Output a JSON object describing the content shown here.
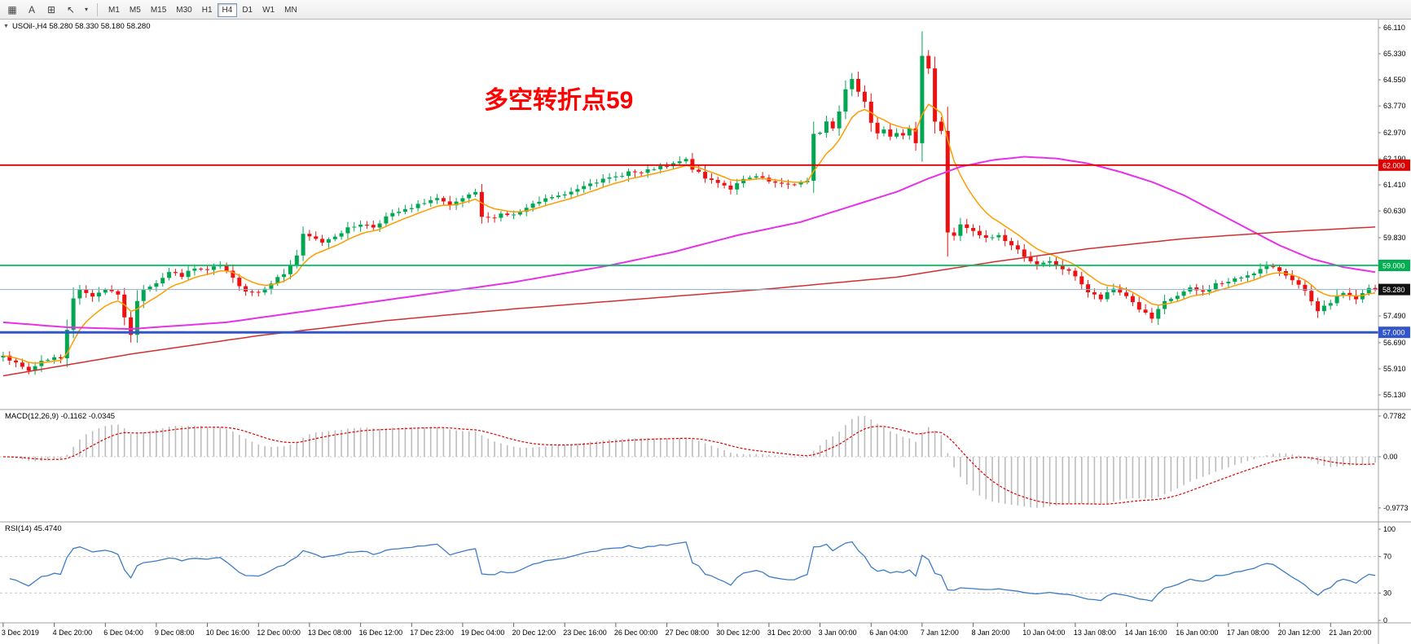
{
  "toolbar": {
    "timeframes": [
      "M1",
      "M5",
      "M15",
      "M30",
      "H1",
      "H4",
      "D1",
      "W1",
      "MN"
    ],
    "active_timeframe": "H4",
    "icon_glyphs": {
      "tick_chart": "▦",
      "text_tool": "A",
      "indicators": "⊞",
      "cursor": "↖",
      "dropdown": "▾"
    }
  },
  "main_chart": {
    "collapse_glyph": "▼",
    "symbol_label": "USOil-,H4 58.280 58.330 58.180 58.280",
    "annotation_text": "多空转折点59",
    "annotation_color": "#ff0000"
  },
  "indicators": {
    "macd_label": "MACD(12,26,9) -0.1162 -0.0345",
    "rsi_label": "RSI(14) 45.4740"
  },
  "chart_data": {
    "type": "candlestick",
    "symbol": "USOil-",
    "timeframe": "H4",
    "bars_total": 216,
    "label_every_bars": 8,
    "price_axis": {
      "min": 55.13,
      "max": 66.11,
      "tick_labels": [
        "66.110",
        "65.330",
        "64.550",
        "63.770",
        "62.970",
        "62.190",
        "61.410",
        "60.630",
        "59.830",
        "57.490",
        "56.690",
        "55.910",
        "55.130"
      ],
      "tick_values": [
        66.11,
        65.33,
        64.55,
        63.77,
        62.97,
        62.19,
        61.41,
        60.63,
        59.83,
        57.49,
        56.69,
        55.91,
        55.13
      ]
    },
    "badges": [
      {
        "label": "62.000",
        "value": 62.0,
        "color": "#dd0000",
        "text": "#ffffff"
      },
      {
        "label": "59.000",
        "value": 59.0,
        "color": "#00b050",
        "text": "#ffffff"
      },
      {
        "label": "58.280",
        "value": 58.28,
        "color": "#111111",
        "text": "#ffffff"
      },
      {
        "label": "57.000",
        "value": 57.0,
        "color": "#3355cc",
        "text": "#ffffff"
      }
    ],
    "hlines": [
      {
        "value": 62.0,
        "color": "#dd0000",
        "width": 1.8
      },
      {
        "value": 59.0,
        "color": "#00c060",
        "width": 1.8
      },
      {
        "value": 58.28,
        "color": "#8fb0cf",
        "width": 1
      },
      {
        "value": 57.0,
        "color": "#3355cc",
        "width": 3
      }
    ],
    "time_labels": [
      "3 Dec 2019",
      "4 Dec 20:00",
      "6 Dec 04:00",
      "9 Dec 08:00",
      "10 Dec 16:00",
      "12 Dec 00:00",
      "13 Dec 08:00",
      "16 Dec 12:00",
      "17 Dec 23:00",
      "19 Dec 04:00",
      "20 Dec 12:00",
      "23 Dec 16:00",
      "26 Dec 00:00",
      "27 Dec 08:00",
      "30 Dec 12:00",
      "31 Dec 20:00",
      "3 Jan 00:00",
      "6 Jan 04:00",
      "7 Jan 12:00",
      "8 Jan 20:00",
      "10 Jan 04:00",
      "13 Jan 08:00",
      "14 Jan 16:00",
      "16 Jan 00:00",
      "17 Jan 08:00",
      "20 Jan 12:00",
      "21 Jan 20:00"
    ],
    "candle_colors": {
      "up": "#00a651",
      "down": "#ee1111"
    },
    "close_anchors": [
      [
        0,
        56.35
      ],
      [
        2,
        56.05
      ],
      [
        4,
        55.85
      ],
      [
        6,
        56.15
      ],
      [
        8,
        56.25
      ],
      [
        9,
        56.2
      ],
      [
        10,
        57.1
      ],
      [
        11,
        58.05
      ],
      [
        12,
        58.25
      ],
      [
        14,
        58.1
      ],
      [
        16,
        58.3
      ],
      [
        18,
        58.15
      ],
      [
        19,
        57.4
      ],
      [
        20,
        56.95
      ],
      [
        21,
        57.9
      ],
      [
        22,
        58.3
      ],
      [
        24,
        58.5
      ],
      [
        26,
        58.8
      ],
      [
        28,
        58.7
      ],
      [
        30,
        58.9
      ],
      [
        32,
        58.85
      ],
      [
        34,
        59.0
      ],
      [
        36,
        58.6
      ],
      [
        38,
        58.25
      ],
      [
        40,
        58.2
      ],
      [
        42,
        58.5
      ],
      [
        44,
        58.75
      ],
      [
        46,
        59.3
      ],
      [
        47,
        59.9
      ],
      [
        48,
        59.85
      ],
      [
        50,
        59.7
      ],
      [
        52,
        59.9
      ],
      [
        54,
        60.1
      ],
      [
        56,
        60.25
      ],
      [
        58,
        60.15
      ],
      [
        60,
        60.45
      ],
      [
        62,
        60.6
      ],
      [
        64,
        60.7
      ],
      [
        66,
        60.9
      ],
      [
        68,
        61.0
      ],
      [
        70,
        60.75
      ],
      [
        72,
        61.0
      ],
      [
        74,
        61.15
      ],
      [
        75,
        60.45
      ],
      [
        76,
        60.4
      ],
      [
        78,
        60.55
      ],
      [
        80,
        60.5
      ],
      [
        82,
        60.7
      ],
      [
        84,
        60.9
      ],
      [
        86,
        61.05
      ],
      [
        88,
        61.1
      ],
      [
        90,
        61.3
      ],
      [
        92,
        61.5
      ],
      [
        94,
        61.55
      ],
      [
        96,
        61.65
      ],
      [
        98,
        61.8
      ],
      [
        100,
        61.75
      ],
      [
        102,
        61.9
      ],
      [
        104,
        61.95
      ],
      [
        106,
        62.1
      ],
      [
        107,
        62.15
      ],
      [
        108,
        61.9
      ],
      [
        110,
        61.6
      ],
      [
        112,
        61.5
      ],
      [
        114,
        61.3
      ],
      [
        116,
        61.55
      ],
      [
        118,
        61.65
      ],
      [
        120,
        61.5
      ],
      [
        122,
        61.4
      ],
      [
        124,
        61.45
      ],
      [
        126,
        61.5
      ],
      [
        127,
        62.9
      ],
      [
        128,
        63.0
      ],
      [
        129,
        63.3
      ],
      [
        130,
        63.1
      ],
      [
        131,
        63.6
      ],
      [
        132,
        64.3
      ],
      [
        133,
        64.6
      ],
      [
        134,
        64.2
      ],
      [
        135,
        63.9
      ],
      [
        136,
        63.3
      ],
      [
        137,
        63.0
      ],
      [
        138,
        63.1
      ],
      [
        139,
        62.9
      ],
      [
        140,
        63.0
      ],
      [
        141,
        62.85
      ],
      [
        142,
        63.05
      ],
      [
        143,
        62.7
      ],
      [
        144,
        65.3
      ],
      [
        145,
        64.9
      ],
      [
        146,
        63.3
      ],
      [
        147,
        63.0
      ],
      [
        148,
        60.0
      ],
      [
        149,
        59.9
      ],
      [
        150,
        60.2
      ],
      [
        151,
        60.1
      ],
      [
        152,
        60.0
      ],
      [
        154,
        59.8
      ],
      [
        156,
        59.9
      ],
      [
        158,
        59.6
      ],
      [
        160,
        59.3
      ],
      [
        162,
        59.0
      ],
      [
        164,
        59.1
      ],
      [
        166,
        58.9
      ],
      [
        168,
        58.7
      ],
      [
        170,
        58.2
      ],
      [
        172,
        58.0
      ],
      [
        174,
        58.3
      ],
      [
        176,
        58.1
      ],
      [
        178,
        57.7
      ],
      [
        180,
        57.4
      ],
      [
        182,
        57.9
      ],
      [
        184,
        58.1
      ],
      [
        186,
        58.3
      ],
      [
        188,
        58.2
      ],
      [
        190,
        58.45
      ],
      [
        192,
        58.5
      ],
      [
        194,
        58.65
      ],
      [
        196,
        58.8
      ],
      [
        198,
        58.95
      ],
      [
        200,
        58.85
      ],
      [
        202,
        58.6
      ],
      [
        204,
        58.2
      ],
      [
        206,
        57.6
      ],
      [
        208,
        57.9
      ],
      [
        210,
        58.2
      ],
      [
        212,
        58.0
      ],
      [
        214,
        58.3
      ],
      [
        215,
        58.28
      ]
    ],
    "spike_high": {
      "bar": 144,
      "high": 66.0
    },
    "moving_averages": [
      {
        "name": "ma-fast",
        "color": "#ff9c00",
        "type": "ema_close",
        "period": 8
      },
      {
        "name": "ma-mid",
        "color": "#e632e6",
        "type": "anchors",
        "anchors": [
          [
            0,
            57.3
          ],
          [
            10,
            57.15
          ],
          [
            20,
            57.1
          ],
          [
            35,
            57.3
          ],
          [
            50,
            57.7
          ],
          [
            65,
            58.1
          ],
          [
            80,
            58.5
          ],
          [
            95,
            59.0
          ],
          [
            105,
            59.4
          ],
          [
            115,
            59.9
          ],
          [
            125,
            60.3
          ],
          [
            135,
            60.9
          ],
          [
            140,
            61.2
          ],
          [
            145,
            61.6
          ],
          [
            150,
            61.95
          ],
          [
            155,
            62.15
          ],
          [
            160,
            62.25
          ],
          [
            165,
            62.2
          ],
          [
            170,
            62.05
          ],
          [
            175,
            61.8
          ],
          [
            180,
            61.5
          ],
          [
            185,
            61.1
          ],
          [
            190,
            60.6
          ],
          [
            195,
            60.1
          ],
          [
            200,
            59.6
          ],
          [
            205,
            59.2
          ],
          [
            210,
            58.95
          ],
          [
            215,
            58.8
          ]
        ]
      },
      {
        "name": "ma-slow",
        "color": "#d03030",
        "type": "anchors",
        "anchors": [
          [
            0,
            55.7
          ],
          [
            20,
            56.35
          ],
          [
            40,
            56.9
          ],
          [
            60,
            57.35
          ],
          [
            80,
            57.7
          ],
          [
            100,
            58.0
          ],
          [
            120,
            58.3
          ],
          [
            140,
            58.65
          ],
          [
            155,
            59.1
          ],
          [
            170,
            59.5
          ],
          [
            185,
            59.8
          ],
          [
            200,
            60.0
          ],
          [
            215,
            60.15
          ]
        ]
      }
    ],
    "macd": {
      "params": [
        12,
        26,
        9
      ],
      "current_macd": -0.1162,
      "current_signal": -0.0345,
      "axis_labels": [
        "0.7782",
        "0.00",
        "-0.9773"
      ],
      "max": 0.7782,
      "min": -0.9773,
      "histogram_color": "#bcbcbc",
      "signal_color": "#e00000"
    },
    "rsi": {
      "period": 14,
      "current": 45.474,
      "axis_labels": [
        "100",
        "70",
        "30",
        "0"
      ],
      "levels": [
        70,
        30
      ],
      "line_color": "#3e7bc4",
      "level_color": "#c8c8c8"
    }
  }
}
